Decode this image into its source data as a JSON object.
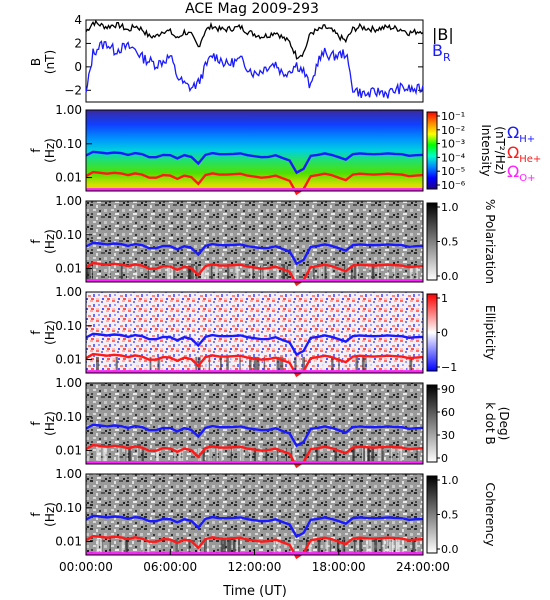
{
  "chart_data": {
    "type": "line",
    "title": "ACE Mag 2009-293",
    "xlabel": "Time (UT)",
    "x_ticks": [
      "00:00:00",
      "06:00:00",
      "12:00:00",
      "18:00:00",
      "24:00:00"
    ],
    "x_range_hours": [
      0,
      24
    ],
    "colors": {
      "B_total": "#000000",
      "B_R": "#1a1aff",
      "H_plus": "#1a1aff",
      "He_plus": "#ff1a1a",
      "O_plus": "#ff22ff"
    },
    "panels": [
      {
        "kind": "timeseries",
        "ylabel": "B",
        "yunit": "(nT)",
        "y_range": [
          -3,
          4
        ],
        "y_ticks": [
          "4",
          "2",
          "0",
          "−2"
        ],
        "legend": [
          "|B|",
          "B",
          "R"
        ],
        "series": [
          {
            "name": "|B|",
            "hours": [
              0,
              0.5,
              1,
              1.5,
              2,
              2.5,
              3,
              3.5,
              4,
              4.5,
              5,
              5.5,
              6,
              6.5,
              7,
              7.5,
              8,
              8.5,
              9,
              9.5,
              10,
              10.5,
              11,
              11.5,
              12,
              12.5,
              13,
              13.5,
              14,
              14.5,
              15,
              15.5,
              16,
              16.5,
              17,
              17.5,
              18,
              18.5,
              19,
              19.5,
              20,
              20.5,
              21,
              21.5,
              22,
              22.5,
              23,
              23.5,
              24
            ],
            "values": [
              3.0,
              3.8,
              3.6,
              3.4,
              3.6,
              3.5,
              3.1,
              3.5,
              3.2,
              2.6,
              2.6,
              3.1,
              3.0,
              2.4,
              3.0,
              2.7,
              1.7,
              3.1,
              3.5,
              3.2,
              3.2,
              3.3,
              3.4,
              3.0,
              2.8,
              2.6,
              2.7,
              3.0,
              2.5,
              2.1,
              0.9,
              1.2,
              2.9,
              3.1,
              3.4,
              3.1,
              2.6,
              2.2,
              3.2,
              3.4,
              3.3,
              3.2,
              3.3,
              3.4,
              3.3,
              3.2,
              2.9,
              3.0,
              3.1
            ]
          },
          {
            "name": "B_R",
            "hours": [
              0,
              0.5,
              1,
              1.5,
              2,
              2.5,
              3,
              3.5,
              4,
              4.5,
              5,
              5.5,
              6,
              6.5,
              7,
              7.5,
              8,
              8.5,
              9,
              9.5,
              10,
              10.5,
              11,
              11.5,
              12,
              12.5,
              13,
              13.5,
              14,
              14.5,
              15,
              15.5,
              16,
              16.5,
              17,
              17.5,
              18,
              18.5,
              19,
              19.5,
              20,
              20.5,
              21,
              21.5,
              22,
              22.5,
              23,
              23.5,
              24
            ],
            "values": [
              -2.4,
              1.2,
              1.8,
              2.0,
              1.4,
              1.6,
              1.7,
              1.5,
              0.8,
              0.5,
              0.2,
              0.5,
              0.9,
              -0.8,
              -1.5,
              -1.8,
              -1.4,
              0.0,
              1.0,
              0.7,
              0.2,
              0.4,
              0.6,
              0.0,
              -0.6,
              -0.3,
              0.1,
              0.3,
              -0.6,
              -0.3,
              0.2,
              -0.4,
              -1.8,
              0.5,
              1.2,
              0.9,
              1.0,
              1.2,
              -1.8,
              -2.2,
              -2.4,
              -2.2,
              -2.1,
              -2.3,
              -2.0,
              -1.8,
              -1.9,
              -2.0,
              -1.8
            ]
          }
        ]
      },
      {
        "kind": "spectrogram",
        "ylabel": "f",
        "yunit": "(Hz)",
        "y_range": [
          0.004,
          1.0
        ],
        "y_scale": "log",
        "y_ticks": [
          "1.00",
          "0.10",
          "0.01"
        ],
        "colorbar": {
          "label": "Intensity",
          "unit": "(nT²/Hz)",
          "ticks": [
            "10⁻¹",
            "10⁻²",
            "10⁻³",
            "10⁻⁴",
            "10⁻⁵",
            "10⁻⁶"
          ],
          "colors": [
            "#ff0000",
            "#ff8800",
            "#ffff00",
            "#00ff00",
            "#00ffcc",
            "#0088ff",
            "#0000ff",
            "#220088"
          ]
        },
        "labels": [
          {
            "symbol": "Ω",
            "sub": "H+",
            "color": "#1a1aff"
          },
          {
            "symbol": "Ω",
            "sub": "He+",
            "color": "#ff1a1a"
          },
          {
            "symbol": "Ω",
            "sub": "O+",
            "color": "#ff22ff"
          }
        ]
      },
      {
        "kind": "spectrogram",
        "ylabel": "f",
        "yunit": "(Hz)",
        "y_range": [
          0.004,
          1.0
        ],
        "y_scale": "log",
        "y_ticks": [
          "1.00",
          "0.10",
          "0.01"
        ],
        "colorbar": {
          "label": "% Polarization",
          "unit": "",
          "ticks": [
            "1.0",
            "0.5",
            "0.0"
          ],
          "colors": [
            "#000000",
            "#ffffff"
          ]
        }
      },
      {
        "kind": "spectrogram",
        "ylabel": "f",
        "yunit": "(Hz)",
        "y_range": [
          0.004,
          1.0
        ],
        "y_scale": "log",
        "y_ticks": [
          "1.00",
          "0.10",
          "0.01"
        ],
        "colorbar": {
          "label": "Ellipticity",
          "unit": "",
          "ticks": [
            "1",
            "0",
            "−1"
          ],
          "colors": [
            "#ff0000",
            "#ffffff",
            "#0000ff"
          ]
        }
      },
      {
        "kind": "spectrogram",
        "ylabel": "f",
        "yunit": "(Hz)",
        "y_range": [
          0.004,
          1.0
        ],
        "y_scale": "log",
        "y_ticks": [
          "1.00",
          "0.10",
          "0.01"
        ],
        "colorbar": {
          "label": "k dot B",
          "unit": "(Deg)",
          "ticks": [
            "90",
            "60",
            "30",
            "0"
          ],
          "colors": [
            "#000000",
            "#ffffff"
          ]
        }
      },
      {
        "kind": "spectrogram",
        "ylabel": "f",
        "yunit": "(Hz)",
        "y_range": [
          0.004,
          1.0
        ],
        "y_scale": "log",
        "y_ticks": [
          "1.00",
          "0.10",
          "0.01"
        ],
        "colorbar": {
          "label": "Coherency",
          "unit": "",
          "ticks": [
            "1.0",
            "0.5",
            "0.0"
          ],
          "colors": [
            "#000000",
            "#ffffff"
          ]
        }
      }
    ],
    "gyrofrequency_lines": {
      "hours": [
        0,
        0.5,
        1,
        1.5,
        2,
        2.5,
        3,
        3.5,
        4,
        4.5,
        5,
        5.5,
        6,
        6.5,
        7,
        7.5,
        8,
        8.5,
        9,
        9.5,
        10,
        10.5,
        11,
        11.5,
        12,
        12.5,
        13,
        13.5,
        14,
        14.5,
        15,
        15.5,
        16,
        16.5,
        17,
        17.5,
        18,
        18.5,
        19,
        19.5,
        20,
        20.5,
        21,
        21.5,
        22,
        22.5,
        23,
        23.5,
        24
      ],
      "H_plus_hz": [
        0.045,
        0.058,
        0.055,
        0.052,
        0.055,
        0.053,
        0.047,
        0.053,
        0.049,
        0.04,
        0.04,
        0.047,
        0.046,
        0.037,
        0.046,
        0.041,
        0.026,
        0.047,
        0.053,
        0.049,
        0.049,
        0.05,
        0.052,
        0.046,
        0.043,
        0.04,
        0.041,
        0.046,
        0.038,
        0.032,
        0.014,
        0.018,
        0.044,
        0.047,
        0.052,
        0.047,
        0.04,
        0.034,
        0.049,
        0.052,
        0.05,
        0.049,
        0.05,
        0.052,
        0.05,
        0.049,
        0.044,
        0.046,
        0.047
      ],
      "He_plus_hz": [
        0.011,
        0.0145,
        0.0138,
        0.013,
        0.0138,
        0.0133,
        0.0118,
        0.0133,
        0.0122,
        0.0099,
        0.0099,
        0.0118,
        0.0114,
        0.0092,
        0.0114,
        0.0103,
        0.0065,
        0.0118,
        0.0133,
        0.0122,
        0.0122,
        0.0126,
        0.013,
        0.0114,
        0.0107,
        0.0099,
        0.0103,
        0.0114,
        0.0095,
        0.008,
        0.0034,
        0.0046,
        0.011,
        0.0118,
        0.013,
        0.0118,
        0.0099,
        0.0084,
        0.0122,
        0.013,
        0.0126,
        0.0122,
        0.0126,
        0.013,
        0.0126,
        0.0122,
        0.011,
        0.0114,
        0.0118
      ],
      "O_plus_hz_approx": 0.0045
    }
  }
}
